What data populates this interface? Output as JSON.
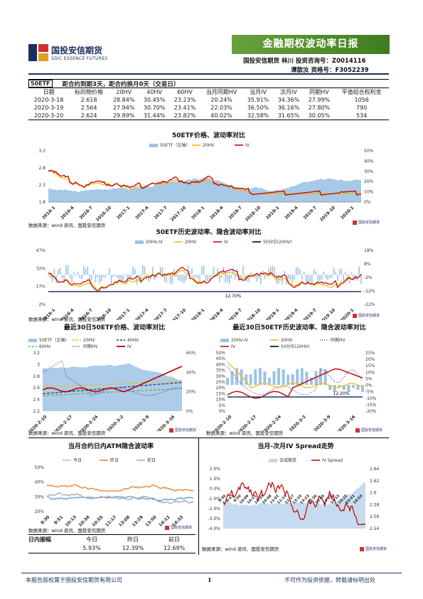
{
  "header": {
    "company": "国投安信期货",
    "company_en": "SDIC ESSENCE FUTURES",
    "report_title": "金融期权波动率日报",
    "author_line1": "国投安信期货  林川  投资咨询号：Z0014116",
    "author_line2": "谭歆汝     资格号：F3052239"
  },
  "summary_table": {
    "tag": "50ETF",
    "note": "距合约到期3天，距合约换月0天（交易日）",
    "columns": [
      "日期",
      "标的物价格",
      "20HV",
      "40HV",
      "60HV",
      "当月同期HV",
      "当月IV",
      "次月IV",
      "同期HV",
      "平值组合权利金"
    ],
    "rows": [
      [
        "2020-3-18",
        "2.618",
        "28.84%",
        "30.45%",
        "23.23%",
        "20.24%",
        "35.91%",
        "34.36%",
        "27.99%",
        "1056"
      ],
      [
        "2020-3-19",
        "2.564",
        "27.94%",
        "30.70%",
        "23.41%",
        "22.03%",
        "36.50%",
        "36.16%",
        "27.80%",
        "790"
      ],
      [
        "2020-3-20",
        "2.624",
        "29.89%",
        "31.44%",
        "23.82%",
        "40.02%",
        "32.58%",
        "31.65%",
        "30.05%",
        "534"
      ]
    ]
  },
  "chart1": {
    "title": "50ETF价格、波动率对比",
    "legend": [
      "50ETF（左轴）",
      "20HV",
      "IV"
    ],
    "y_left": [
      "3.3",
      "2.8",
      "2.3",
      "1.8"
    ],
    "y_right": [
      "50%",
      "40%",
      "30%",
      "20%",
      "10%",
      "0%"
    ],
    "x_labels": [
      "2016-1",
      "2016-4",
      "2016-7",
      "2016-10",
      "2017-1",
      "2017-4",
      "2017-7",
      "2017-10",
      "2018-1",
      "2018-4",
      "2018-7",
      "2018-10",
      "2019-1",
      "2019-4",
      "2019-7",
      "2019-10",
      "2020-1"
    ],
    "source": "数据来源：wind 资讯、国投安信期货"
  },
  "chart2": {
    "title": "50ETF历史波动率、隐含波动率对比",
    "legend": [
      "20HV-IV",
      "20HV",
      "IV",
      "50分位(20HV)"
    ],
    "y_left": [
      "47%",
      "32%",
      "17%",
      "2%"
    ],
    "y_right": [
      "18%",
      "8%",
      "-2%",
      "-12%",
      "-22%"
    ],
    "annotation": "12.70%",
    "x_labels": [
      "2016-1",
      "2016-4",
      "2016-7",
      "2016-10",
      "2017-1",
      "2017-4",
      "2017-7",
      "2017-10",
      "2018-1",
      "2018-4",
      "2018-7",
      "2018-10",
      "2019-1",
      "2019-4",
      "2019-7",
      "2019-10",
      "2020-1"
    ],
    "source": "数据来源：wind 资讯、国投安信期货"
  },
  "chart3": {
    "title": "最近30日50ETF价格、波动率对比",
    "legend": [
      "50ETF（左轴）",
      "20HV",
      "40HV",
      "60HV",
      "同期HV",
      "IV"
    ],
    "y_left": [
      "3.2",
      "3",
      "2.8",
      "2.6",
      "2.4",
      "2.2"
    ],
    "y_right": [
      "60%",
      "40%",
      "20%",
      "0%"
    ],
    "x_labels": [
      "2020-2-10",
      "2020-2-17",
      "2020-2-24",
      "2020-3-2",
      "2020-3-9",
      "2020-3-16"
    ],
    "source": "数据来源：wind 资讯、国投安信期货"
  },
  "chart4": {
    "title": "最近30日50ETF历史波动率、隐含波动率对比",
    "legend": [
      "20HV-IV",
      "20HV",
      "同期HV",
      "IV",
      "50分位(20HV)"
    ],
    "y_left": [
      "50%",
      "45%",
      "40%",
      "35%",
      "30%",
      "25%",
      "20%",
      "15%",
      "10%",
      "5%",
      "0%"
    ],
    "y_right": [
      "25%",
      "20%",
      "15%",
      "10%",
      "5%",
      "0%",
      "-5%",
      "-10%",
      "-15%",
      "-20%"
    ],
    "annotation": "12.20%",
    "x_labels": [
      "2020-2-10",
      "2020-2-17",
      "2020-2-24",
      "2020-3-2",
      "2020-3-9",
      "2020-3-16"
    ],
    "source": "数据来源：wind 资讯、国投安信期货"
  },
  "chart5": {
    "title": "当月合约日内ATM隐含波动率",
    "legend": [
      "今日",
      "昨日",
      "前日"
    ],
    "y_left": [
      "50%",
      "40%",
      "30%",
      "20%"
    ],
    "x_labels": [
      "9:30",
      "9:51",
      "10:13",
      "10:34",
      "10:55",
      "11:17",
      "13:08",
      "13:29",
      "13:50",
      "14:12",
      "14:33"
    ],
    "source": "数据来源：wind 资讯、国投安信期货"
  },
  "chart6": {
    "title": "当月-次月IV Spread走势",
    "legend": [
      "合成期货",
      "IV Spread"
    ],
    "y_left": [
      "2.0%",
      "1.0%",
      "0.0%",
      "-1.0%",
      "-2.0%",
      "-3.0%",
      "-4.0%"
    ],
    "y_right": [
      "2.64",
      "2.62",
      "2.6",
      "2.58",
      "2.56",
      "2.54"
    ],
    "x_labels": [
      "9:30",
      "9:43",
      "9:56",
      "10:09",
      "10:22",
      "10:35",
      "10:48",
      "11:01",
      "11:14",
      "11:27",
      "13:10",
      "13:23",
      "13:36",
      "13:49",
      "14:02",
      "14:15",
      "14:28",
      "14:41",
      "14:54"
    ],
    "source": "数据来源：wind 资讯、国投安信期货"
  },
  "amplitude": {
    "label": "日内振幅",
    "headers": [
      "今日",
      "昨日",
      "前日"
    ],
    "values": [
      "5.93%",
      "12.39%",
      "12.69%"
    ]
  },
  "brand_small": "国投安信期货",
  "footer": {
    "left": "本报告版权属于国投安信期货有限公司",
    "page": "1",
    "right": "不可作为投资依据，转载请标明出处"
  },
  "colors": {
    "banner": "#4f8f2c",
    "iv_red": "#c00000",
    "hv_yellow": "#f5b800",
    "area_blue": "#9dc3e6",
    "navy": "#1f3864",
    "orange": "#ed7d31",
    "gray": "#a5a5a5",
    "purple": "#7030a0",
    "green": "#70ad47"
  }
}
